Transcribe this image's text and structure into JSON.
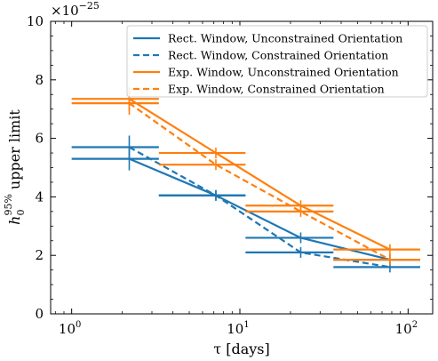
{
  "chart_data": {
    "type": "line",
    "x_scale": "log",
    "xlim": [
      0.75,
      140
    ],
    "ylim": [
      0,
      10
    ],
    "xlabel": "τ [days]",
    "ylabel_main": "h",
    "ylabel_sub": "0",
    "ylabel_sup": "95%",
    "ylabel_rest": "upper limit",
    "y_multiplier_base": "×10",
    "y_multiplier_exp": "−25",
    "x_ticks": [
      {
        "value": 1,
        "base": "10",
        "exp": "0"
      },
      {
        "value": 10,
        "base": "10",
        "exp": "1"
      },
      {
        "value": 100,
        "base": "10",
        "exp": "2"
      }
    ],
    "y_ticks": [
      {
        "value": 0,
        "label": "0"
      },
      {
        "value": 2,
        "label": "2"
      },
      {
        "value": 4,
        "label": "4"
      },
      {
        "value": 6,
        "label": "6"
      },
      {
        "value": 8,
        "label": "8"
      },
      {
        "value": 10,
        "label": "10"
      }
    ],
    "legend_position": "top-right",
    "series": [
      {
        "name": "Rect. Window, Unconstrained Orientation",
        "color": "#1f77b4",
        "dash": "solid",
        "points": [
          {
            "x": 2.2,
            "y": 5.3
          },
          {
            "x": 7.2,
            "y": 4.05
          },
          {
            "x": 23,
            "y": 2.6
          },
          {
            "x": 78,
            "y": 1.85
          }
        ],
        "bins": [
          {
            "x0": 1.0,
            "x1": 3.3,
            "y": 5.3
          },
          {
            "x0": 3.3,
            "x1": 10.8,
            "y": 4.05
          },
          {
            "x0": 10.8,
            "x1": 36,
            "y": 2.6
          },
          {
            "x0": 36,
            "x1": 118,
            "y": 1.85
          }
        ]
      },
      {
        "name": "Rect. Window, Constrained Orientation",
        "color": "#1f77b4",
        "dash": "dashed",
        "points": [
          {
            "x": 2.2,
            "y": 5.7
          },
          {
            "x": 7.2,
            "y": 4.05
          },
          {
            "x": 23,
            "y": 2.1
          },
          {
            "x": 78,
            "y": 1.6
          }
        ],
        "bins": [
          {
            "x0": 1.0,
            "x1": 3.3,
            "y": 5.7
          },
          {
            "x0": 3.3,
            "x1": 10.8,
            "y": 4.05
          },
          {
            "x0": 10.8,
            "x1": 36,
            "y": 2.1
          },
          {
            "x0": 36,
            "x1": 118,
            "y": 1.6
          }
        ]
      },
      {
        "name": "Exp. Window, Unconstrained Orientation",
        "color": "#ff7f0e",
        "dash": "solid",
        "points": [
          {
            "x": 2.2,
            "y": 7.35
          },
          {
            "x": 7.2,
            "y": 5.5
          },
          {
            "x": 23,
            "y": 3.7
          },
          {
            "x": 78,
            "y": 2.2
          }
        ],
        "bins": [
          {
            "x0": 1.0,
            "x1": 3.3,
            "y": 7.35
          },
          {
            "x0": 3.3,
            "x1": 10.8,
            "y": 5.5
          },
          {
            "x0": 10.8,
            "x1": 36,
            "y": 3.7
          },
          {
            "x0": 36,
            "x1": 118,
            "y": 2.2
          }
        ]
      },
      {
        "name": "Exp. Window, Constrained Orientation",
        "color": "#ff7f0e",
        "dash": "dashed",
        "points": [
          {
            "x": 2.2,
            "y": 7.2
          },
          {
            "x": 7.2,
            "y": 5.1
          },
          {
            "x": 23,
            "y": 3.5
          },
          {
            "x": 78,
            "y": 1.85
          }
        ],
        "bins": [
          {
            "x0": 1.0,
            "x1": 3.3,
            "y": 7.2
          },
          {
            "x0": 3.3,
            "x1": 10.8,
            "y": 5.1
          },
          {
            "x0": 10.8,
            "x1": 36,
            "y": 3.5
          },
          {
            "x0": 36,
            "x1": 118,
            "y": 1.85
          }
        ]
      }
    ]
  }
}
